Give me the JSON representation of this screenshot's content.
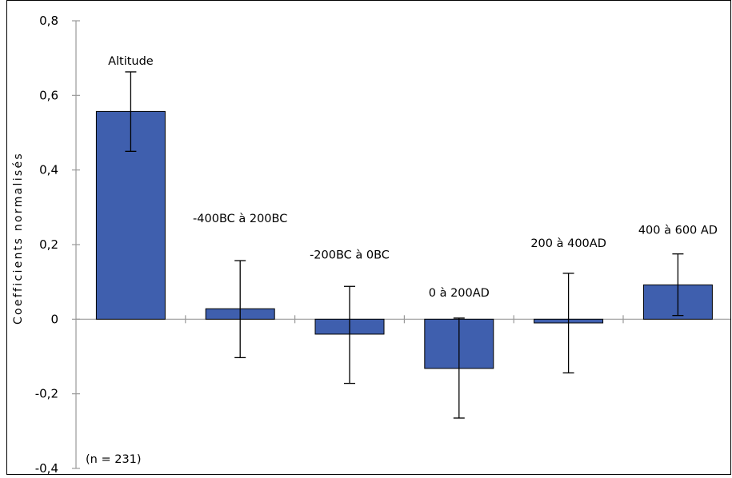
{
  "chart_data": {
    "type": "bar",
    "ylabel": "Coefficients normalisés",
    "ylim": [
      -0.4,
      0.8
    ],
    "yticks": [
      "-0,4",
      "-0,2",
      "0",
      "0,2",
      "0,4",
      "0,6",
      "0,8"
    ],
    "categories": [
      "Altitude",
      "-400BC à  200BC",
      "-200BC à 0BC",
      "0 à 200AD",
      "200 à 400AD",
      "400 à 600 AD"
    ],
    "values": [
      0.557,
      0.028,
      -0.04,
      -0.132,
      -0.01,
      0.092
    ],
    "error_low": [
      0.45,
      -0.103,
      -0.172,
      -0.265,
      -0.144,
      0.01
    ],
    "error_high": [
      0.663,
      0.157,
      0.088,
      0.003,
      0.123,
      0.175
    ],
    "annotation": "(n  = 231)",
    "bar_color": "#3f5fae",
    "grid": false
  }
}
